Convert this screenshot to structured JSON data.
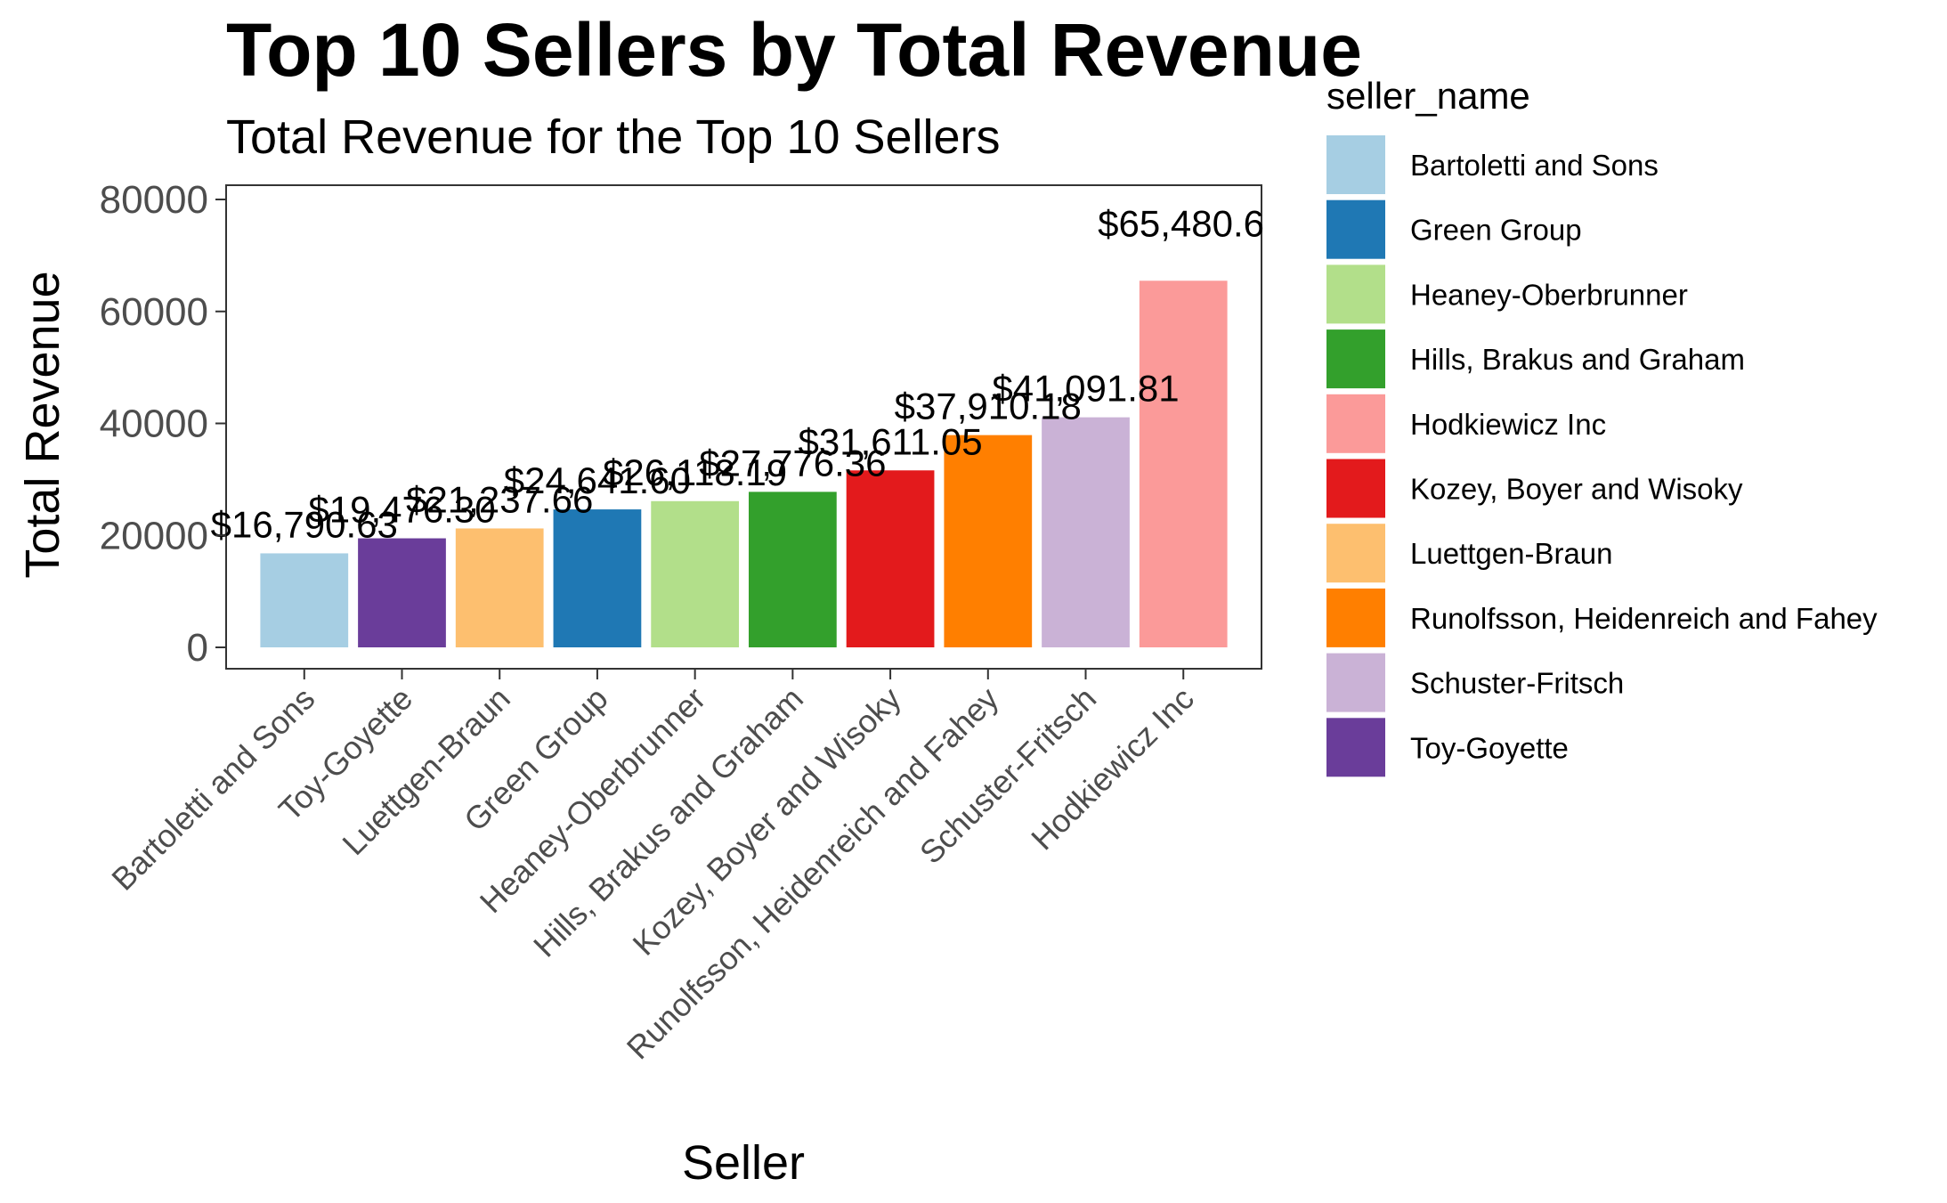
{
  "chart_data": {
    "type": "bar",
    "title": "Top 10 Sellers by Total Revenue",
    "subtitle": "Total Revenue for the Top 10 Sellers",
    "xlabel": "Seller",
    "ylabel": "Total Revenue",
    "ylim": [
      0,
      80000
    ],
    "yticks": [
      "0",
      "20000",
      "40000",
      "60000",
      "80000"
    ],
    "yticks_values": [
      0,
      20000,
      40000,
      60000,
      80000
    ],
    "grid": false,
    "legend_position": "right",
    "legend_title": "seller_name",
    "categories": [
      "Bartoletti and Sons",
      "Toy-Goyette",
      "Luettgen-Braun",
      "Green Group",
      "Heaney-Oberbrunner",
      "Hills, Brakus and Graham",
      "Kozey, Boyer and Wisoky",
      "Runolfsson, Heidenreich and Fahey",
      "Schuster-Fritsch",
      "Hodkiewicz Inc"
    ],
    "values": [
      16790.63,
      19476.3,
      21237.66,
      24641.6,
      26118.19,
      27776.36,
      31611.05,
      37910.18,
      41091.81,
      65480.6
    ],
    "data_labels": [
      "$16,790.63",
      "$19,476.30",
      "$21,237.66",
      "$24,641.60",
      "$26,118.19",
      "$27,776.36",
      "$31,611.05",
      "$37,910.18",
      "$41,091.81",
      "$65,480.6"
    ],
    "colors": [
      "#A6CEE3",
      "#6A3D9A",
      "#FDBF6F",
      "#1F78B4",
      "#B2DF8A",
      "#33A02C",
      "#E31A1C",
      "#FF7F00",
      "#CAB2D6",
      "#FB9A99"
    ],
    "legend": [
      {
        "label": "Bartoletti and Sons",
        "color": "#A6CEE3"
      },
      {
        "label": "Green Group",
        "color": "#1F78B4"
      },
      {
        "label": "Heaney-Oberbrunner",
        "color": "#B2DF8A"
      },
      {
        "label": "Hills, Brakus and Graham",
        "color": "#33A02C"
      },
      {
        "label": "Hodkiewicz Inc",
        "color": "#FB9A99"
      },
      {
        "label": "Kozey, Boyer and Wisoky",
        "color": "#E31A1C"
      },
      {
        "label": "Luettgen-Braun",
        "color": "#FDBF6F"
      },
      {
        "label": "Runolfsson, Heidenreich and Fahey",
        "color": "#FF7F00"
      },
      {
        "label": "Schuster-Fritsch",
        "color": "#CAB2D6"
      },
      {
        "label": "Toy-Goyette",
        "color": "#6A3D9A"
      }
    ]
  }
}
